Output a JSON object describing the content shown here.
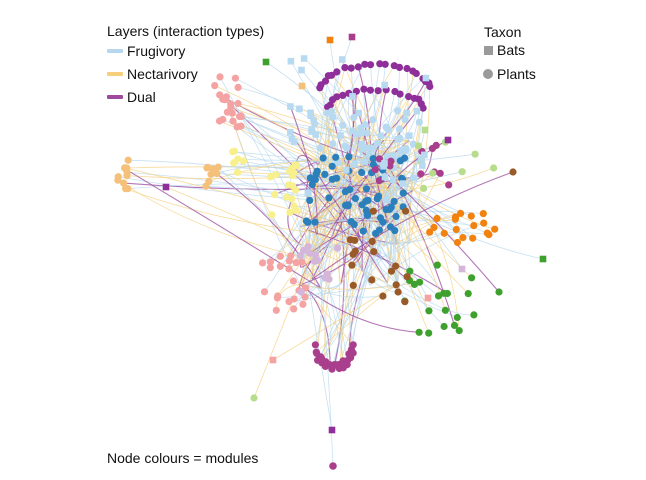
{
  "legend_layers": {
    "title": "Layers (interaction types)",
    "items": [
      {
        "label": "Frugivory",
        "color": "#b6d7ee"
      },
      {
        "label": "Nectarivory",
        "color": "#f5cf7c"
      },
      {
        "label": "Dual",
        "color": "#9b4a9e"
      }
    ]
  },
  "legend_taxon": {
    "title": "Taxon",
    "items": [
      {
        "label": "Bats",
        "shape": "square",
        "color": "#9a9a9a"
      },
      {
        "label": "Plants",
        "shape": "circle",
        "color": "#9a9a9a"
      }
    ]
  },
  "caption": "Node colours = modules",
  "module_colors": [
    "#8e2f9a",
    "#b8daf0",
    "#f4a2a2",
    "#f8f08c",
    "#f4c07a",
    "#2b7fbb",
    "#a93f8c",
    "#f2820f",
    "#3ea12e",
    "#9a5a28",
    "#b7dc8c",
    "#d4b6da"
  ]
}
